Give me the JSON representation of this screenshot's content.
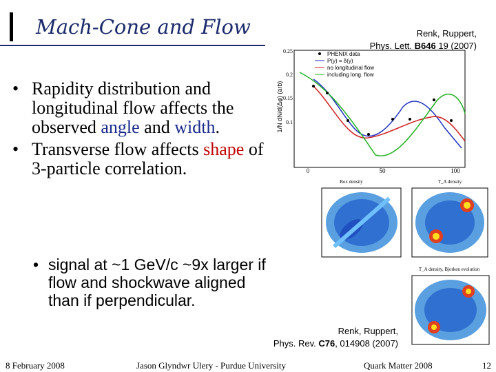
{
  "title": "Mach-Cone and Flow",
  "citation_top": {
    "authors": "Renk, Ruppert,",
    "journal": "Phys. Lett. ",
    "volume": "B646",
    "rest": " 19 (2007)"
  },
  "citation_bottom": {
    "authors": "Renk, Ruppert,",
    "journal": "Phys. Rev. ",
    "volume": "C76",
    "rest": ", 014908 (2007)"
  },
  "bullets": [
    {
      "pre": "Rapidity distribution and longitudinal flow affects the observed ",
      "hl1": "angle",
      "mid": " and ",
      "hl2": "width",
      "post": "."
    },
    {
      "pre": "Transverse flow affects ",
      "hl1": "shape",
      "post": " of 3-particle correlation."
    }
  ],
  "sub_bullet": "signal at ~1 GeV/c ~9x larger if flow and shockwave aligned than if perpendicular.",
  "plot": {
    "ylabel": "1/N dN/d(Δφ) (arb)",
    "yticks": [
      "0.25",
      "0.2",
      "0.15",
      "0.1"
    ],
    "xticks": [
      "0",
      "50",
      "100"
    ],
    "legend": [
      "PHENIX data",
      "P(y) = δ(y)",
      "no longitudinal flow",
      "including long. flow"
    ]
  },
  "panels": {
    "box": "Box density",
    "ta": "T_A density",
    "ta_bj": "T_A density, Bjorken evolution"
  },
  "footer": {
    "date": "8 February 2008",
    "author": "Jason Glyndwr Ulery - Purdue University",
    "conf": "Quark Matter 2008",
    "page": "12"
  },
  "colors": {
    "title": "#1a2a6b",
    "accent_blue": "#1a2a8b",
    "accent_red": "#c00000"
  }
}
